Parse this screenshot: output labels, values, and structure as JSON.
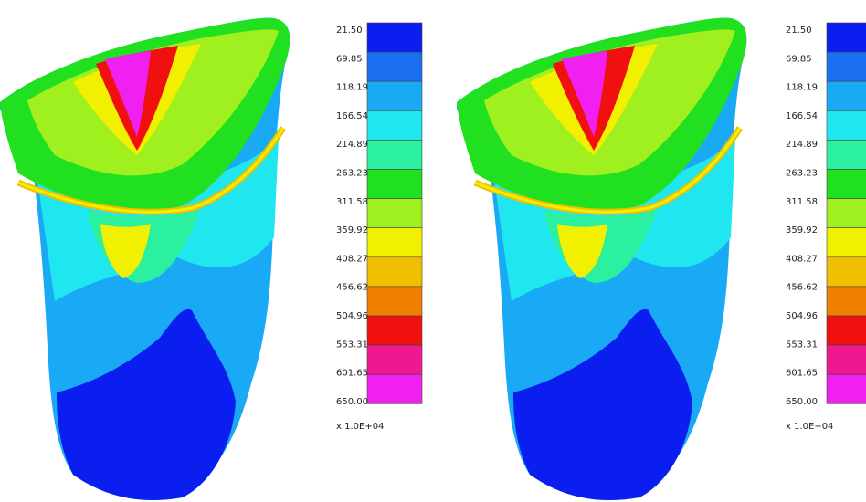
{
  "panels": [
    {
      "legend": {
        "labels": [
          "21.50",
          "69.85",
          "118.19",
          "166.54",
          "214.89",
          "263.23",
          "311.58",
          "359.92",
          "408.27",
          "456.62",
          "504.96",
          "553.31",
          "601.65",
          "650.00"
        ],
        "scale": "x 1.0E+04"
      }
    },
    {
      "legend": {
        "labels": [
          "21.50",
          "69.85",
          "118.19",
          "166.54",
          "214.89",
          "263.23",
          "311.58",
          "359.92",
          "408.27",
          "456.62",
          "504.96",
          "553.31",
          "601.65",
          "650.00"
        ],
        "scale": "x 1.0E+04"
      }
    }
  ],
  "legend_colors": [
    "#0a1ef0",
    "#1a6ef0",
    "#1aaaf5",
    "#20e6f0",
    "#2af0a0",
    "#20e020",
    "#a0f020",
    "#f0f000",
    "#f0c000",
    "#f08000",
    "#f01010",
    "#f01890",
    "#f020f0"
  ]
}
